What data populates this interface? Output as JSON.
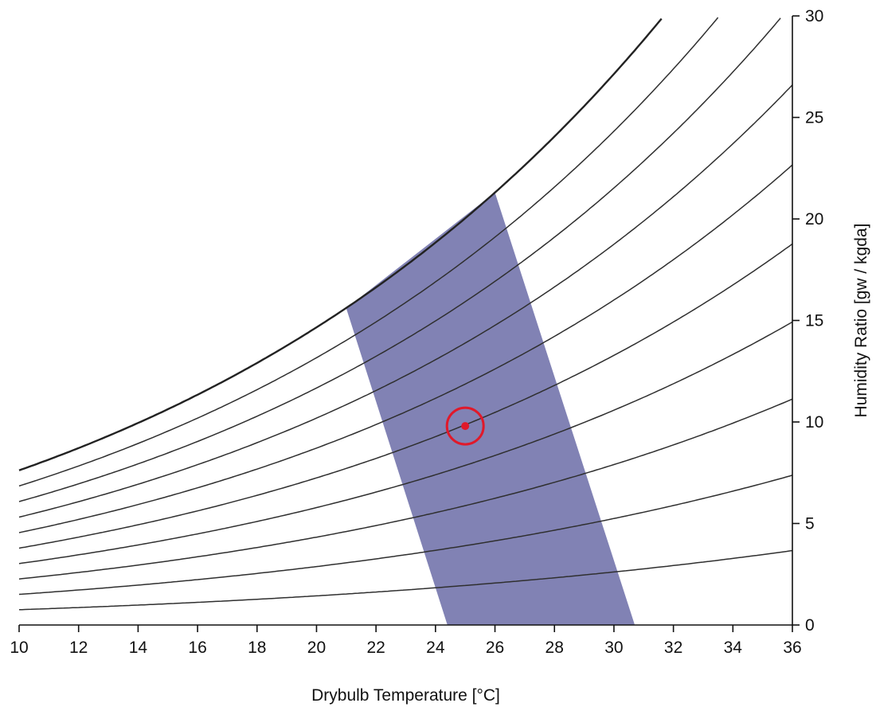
{
  "chart_data": {
    "type": "line",
    "title": "",
    "xlabel": "Drybulb Temperature [°C]",
    "ylabel": "Humidity Ratio [gw / kgda]",
    "xlim": [
      10,
      36
    ],
    "ylim": [
      0,
      30
    ],
    "x_ticks": [
      "10",
      "12",
      "14",
      "16",
      "18",
      "20",
      "22",
      "24",
      "26",
      "28",
      "30",
      "32",
      "34",
      "36"
    ],
    "y_ticks": [
      "0",
      "5",
      "10",
      "15",
      "20",
      "25",
      "30"
    ],
    "y_axis_position": "right",
    "grid": false,
    "relative_humidity_curves": [
      0.1,
      0.2,
      0.3,
      0.4,
      0.5,
      0.6,
      0.7,
      0.8,
      0.9,
      1.0
    ],
    "saturation_curve": {
      "x": [
        10,
        31.6
      ],
      "y_at_10C": 7.6
    },
    "comfort_zone": {
      "color": "#7a7bb0",
      "polygon": [
        [
          24.4,
          0
        ],
        [
          30.7,
          0
        ],
        [
          26.0,
          21.3
        ],
        [
          21.0,
          15.6
        ]
      ]
    },
    "marker": {
      "x": 25.0,
      "y": 9.8,
      "color": "#e0192a"
    }
  }
}
